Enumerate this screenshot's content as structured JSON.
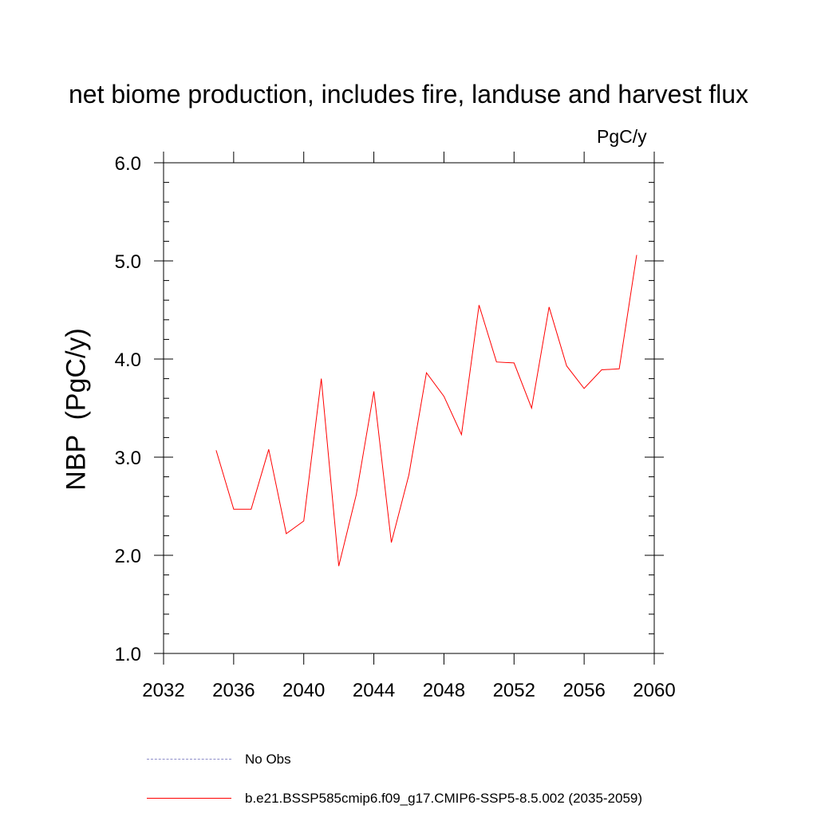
{
  "chart_data": {
    "type": "line",
    "title": "net biome production, includes fire, landuse and harvest flux",
    "units_label": "PgC/y",
    "ylabel": "NBP  (PgC/y)",
    "xlabel": "",
    "xlim": [
      2032,
      2060
    ],
    "ylim": [
      1.0,
      6.0
    ],
    "x_ticks": [
      2032,
      2036,
      2040,
      2044,
      2048,
      2052,
      2056,
      2060
    ],
    "x_tick_labels": [
      "2032",
      "2036",
      "2040",
      "2044",
      "2048",
      "2052",
      "2056",
      "2060"
    ],
    "y_ticks": [
      1.0,
      2.0,
      3.0,
      4.0,
      5.0,
      6.0
    ],
    "y_tick_labels": [
      "1.0",
      "2.0",
      "3.0",
      "4.0",
      "5.0",
      "6.0"
    ],
    "grid": false,
    "series": [
      {
        "name": "b.e21.BSSP585cmip6.f09_g17.CMIP6-SSP5-8.5.002 (2035-2059)",
        "color": "#ff0000",
        "x": [
          2035,
          2036,
          2037,
          2038,
          2039,
          2040,
          2041,
          2042,
          2043,
          2044,
          2045,
          2046,
          2047,
          2048,
          2049,
          2050,
          2051,
          2052,
          2053,
          2054,
          2055,
          2056,
          2057,
          2058,
          2059
        ],
        "values": [
          3.07,
          2.47,
          2.47,
          3.08,
          2.22,
          2.35,
          3.8,
          1.89,
          2.62,
          3.67,
          2.13,
          2.82,
          3.86,
          3.62,
          3.23,
          4.55,
          3.97,
          3.96,
          3.5,
          4.53,
          3.93,
          3.7,
          3.89,
          3.9,
          5.06
        ]
      }
    ],
    "legend": [
      {
        "label": "No Obs",
        "style": "dashed",
        "color": "#8c8cc8"
      },
      {
        "label": "b.e21.BSSP585cmip6.f09_g17.CMIP6-SSP5-8.5.002 (2035-2059)",
        "style": "solid",
        "color": "#ff0000"
      }
    ]
  }
}
